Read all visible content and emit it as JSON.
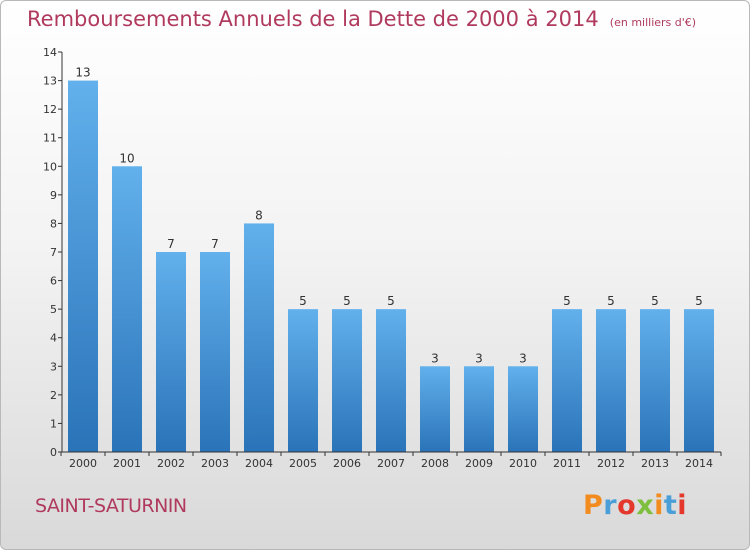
{
  "header": {
    "title": "Remboursements Annuels de la Dette de 2000 à 2014",
    "unit": "(en milliers d'€)"
  },
  "footer": {
    "city": "SAINT-SATURNIN",
    "logo": "Proxiti",
    "logo_colors": [
      "#f28c1e",
      "#4a9fd9",
      "#e5382c",
      "#7fbf3f",
      "#f28c1e",
      "#4a9fd9",
      "#e5382c"
    ]
  },
  "colors": {
    "bar_top": "#62b0ec",
    "bar_bottom": "#2a73b8",
    "title": "#b03a5e",
    "axis": "#333333",
    "grid": "#dddddd"
  },
  "chart_data": {
    "type": "bar",
    "title": "Remboursements Annuels de la Dette de 2000 à 2014",
    "subtitle": "(en milliers d'€)",
    "xlabel": "",
    "ylabel": "",
    "categories": [
      "2000",
      "2001",
      "2002",
      "2003",
      "2004",
      "2005",
      "2006",
      "2007",
      "2008",
      "2009",
      "2010",
      "2011",
      "2012",
      "2013",
      "2014"
    ],
    "values": [
      13,
      10,
      7,
      7,
      8,
      5,
      5,
      5,
      3,
      3,
      3,
      5,
      5,
      5,
      5
    ],
    "data_labels": [
      "13",
      "10",
      "7",
      "7",
      "8",
      "5",
      "5",
      "5",
      "3",
      "3",
      "3",
      "5",
      "5",
      "5",
      "5"
    ],
    "yticks": [
      "0",
      "1",
      "2",
      "3",
      "4",
      "5",
      "6",
      "7",
      "8",
      "9",
      "10",
      "11",
      "12",
      "13",
      "14"
    ],
    "ylim": [
      0,
      14
    ],
    "grid": false,
    "legend": "none"
  }
}
